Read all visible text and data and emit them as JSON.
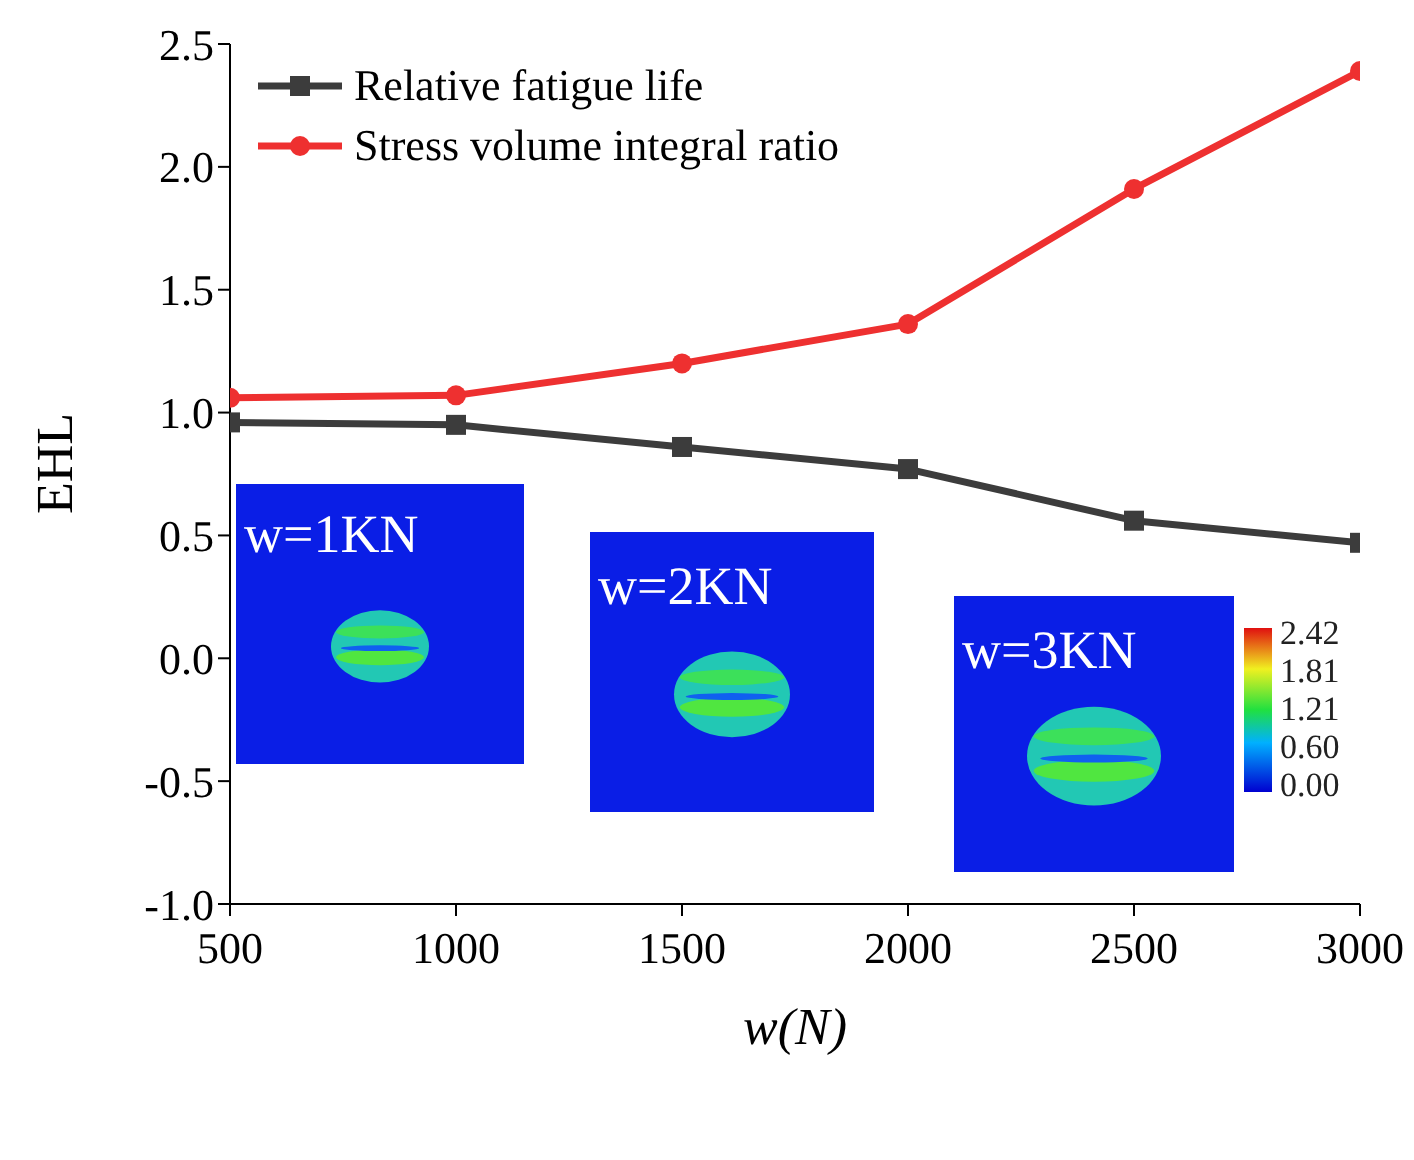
{
  "chart_data": {
    "type": "line",
    "xlabel": "w(N)",
    "ylabel": "EHL",
    "x": [
      500,
      1000,
      1500,
      2000,
      2500,
      3000
    ],
    "series": [
      {
        "name": "Relative fatigue life",
        "color": "#3c3c3c",
        "marker": "square",
        "values": [
          0.96,
          0.95,
          0.86,
          0.77,
          0.56,
          0.47
        ]
      },
      {
        "name": "Stress volume integral ratio",
        "color": "#ee3030",
        "marker": "circle",
        "values": [
          1.06,
          1.07,
          1.2,
          1.36,
          1.91,
          2.39
        ]
      }
    ],
    "xlim": [
      500,
      3000
    ],
    "xticks": [
      500,
      1000,
      1500,
      2000,
      2500,
      3000
    ],
    "ylim": [
      -1.0,
      2.5
    ],
    "yticks": [
      {
        "value": -1,
        "label": "-1.0"
      },
      {
        "value": -0.5,
        "label": "-0.5"
      },
      {
        "value": 0,
        "label": "0.0"
      },
      {
        "value": 0.5,
        "label": "0.5"
      },
      {
        "value": 1,
        "label": "1.0"
      },
      {
        "value": 1.5,
        "label": "1.5"
      },
      {
        "value": 2,
        "label": "2.0"
      },
      {
        "value": 2.5,
        "label": "2.5"
      }
    ],
    "grid": false,
    "legend": "top left",
    "line_style": "solid",
    "annotations": [
      "w=1KN",
      "w=2KN",
      "w=3KN",
      "2.42",
      "1.81",
      "1.21",
      "0.60",
      "0.00"
    ]
  }
}
